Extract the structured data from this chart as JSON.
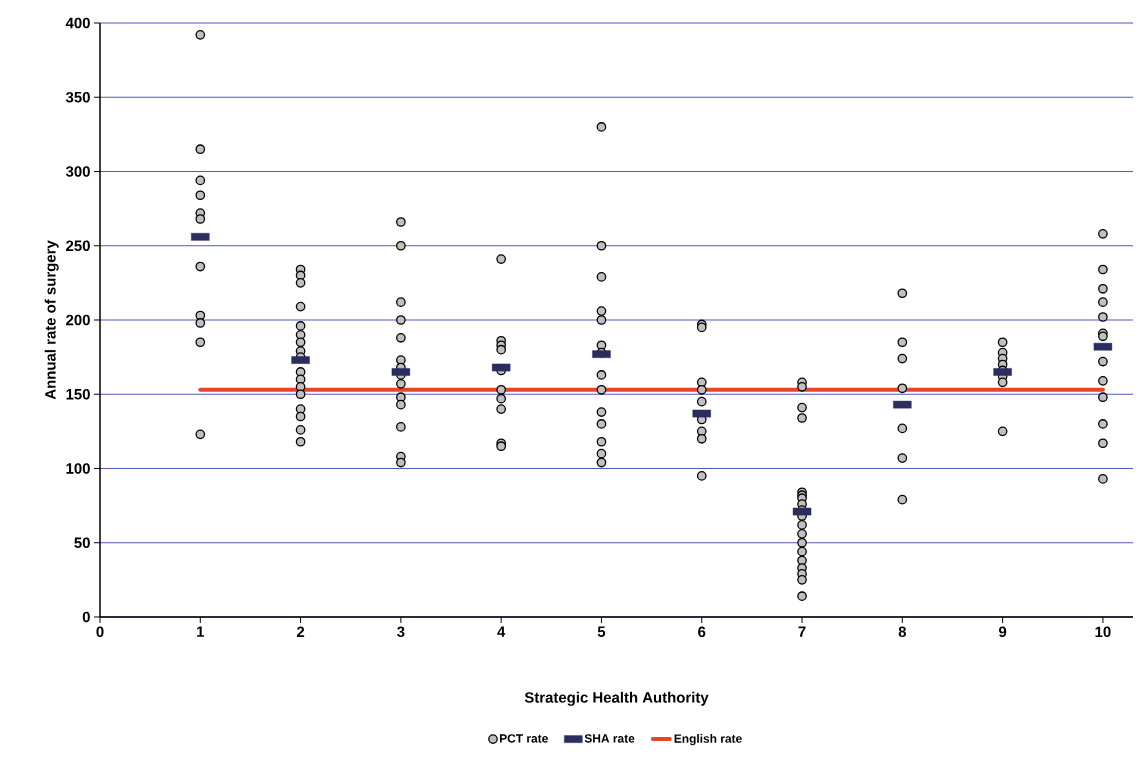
{
  "chart_data": {
    "type": "scatter",
    "xlabel": "Strategic Health Authority",
    "ylabel": "Annual rate of surgery",
    "xlim": [
      0,
      10.3
    ],
    "xticks": [
      0,
      1,
      2,
      3,
      4,
      5,
      6,
      7,
      8,
      9,
      10
    ],
    "ylim": [
      0,
      400
    ],
    "yticks": [
      0,
      50,
      100,
      150,
      200,
      250,
      300,
      350,
      400
    ],
    "grid": "y",
    "legend": "bottom",
    "series": [
      {
        "name": "PCT rate",
        "marker": "circle",
        "color": "#c0c0c0",
        "x": [
          1,
          1,
          1,
          1,
          1,
          1,
          1,
          1,
          1,
          1,
          1,
          2,
          2,
          2,
          2,
          2,
          2,
          2,
          2,
          2,
          2,
          2,
          2,
          2,
          2,
          2,
          2,
          2,
          3,
          3,
          3,
          3,
          3,
          3,
          3,
          3,
          3,
          3,
          3,
          3,
          3,
          3,
          4,
          4,
          4,
          4,
          4,
          4,
          4,
          4,
          4,
          4,
          5,
          5,
          5,
          5,
          5,
          5,
          5,
          5,
          5,
          5,
          5,
          5,
          5,
          5,
          6,
          6,
          6,
          6,
          6,
          6,
          6,
          6,
          6,
          7,
          7,
          7,
          7,
          7,
          7,
          7,
          7,
          7,
          7,
          7,
          7,
          7,
          7,
          7,
          7,
          7,
          7,
          7,
          8,
          8,
          8,
          8,
          8,
          8,
          8,
          9,
          9,
          9,
          9,
          9,
          9,
          9,
          9,
          10,
          10,
          10,
          10,
          10,
          10,
          10,
          10,
          10,
          10,
          10,
          10,
          10
        ],
        "values": [
          392,
          315,
          294,
          284,
          272,
          268,
          236,
          203,
          198,
          185,
          123,
          234,
          230,
          225,
          209,
          196,
          190,
          185,
          179,
          175,
          165,
          160,
          155,
          150,
          140,
          135,
          126,
          118,
          266,
          250,
          212,
          200,
          188,
          173,
          168,
          163,
          157,
          148,
          143,
          128,
          108,
          104,
          241,
          186,
          183,
          180,
          166,
          153,
          147,
          140,
          117,
          115,
          330,
          250,
          229,
          206,
          200,
          183,
          178,
          163,
          153,
          138,
          130,
          118,
          110,
          104,
          197,
          195,
          158,
          153,
          145,
          133,
          125,
          120,
          95,
          158,
          155,
          141,
          134,
          84,
          82,
          80,
          76,
          72,
          68,
          62,
          56,
          50,
          44,
          38,
          33,
          29,
          25,
          14,
          218,
          185,
          174,
          154,
          127,
          107,
          79,
          185,
          178,
          174,
          170,
          166,
          162,
          158,
          125,
          258,
          234,
          221,
          212,
          202,
          191,
          189,
          172,
          159,
          148,
          130,
          117,
          93
        ]
      },
      {
        "name": "SHA rate",
        "marker": "square",
        "color": "#2b2d5e",
        "x": [
          1,
          2,
          3,
          4,
          5,
          6,
          7,
          8,
          9,
          10
        ],
        "values": [
          256,
          173,
          165,
          168,
          177,
          137,
          71,
          143,
          165,
          182
        ]
      },
      {
        "name": "English rate",
        "type": "line",
        "marker": "none",
        "line_style": "solid",
        "color": "#e8442a",
        "x": [
          1,
          10
        ],
        "values": [
          153,
          153
        ]
      }
    ]
  }
}
